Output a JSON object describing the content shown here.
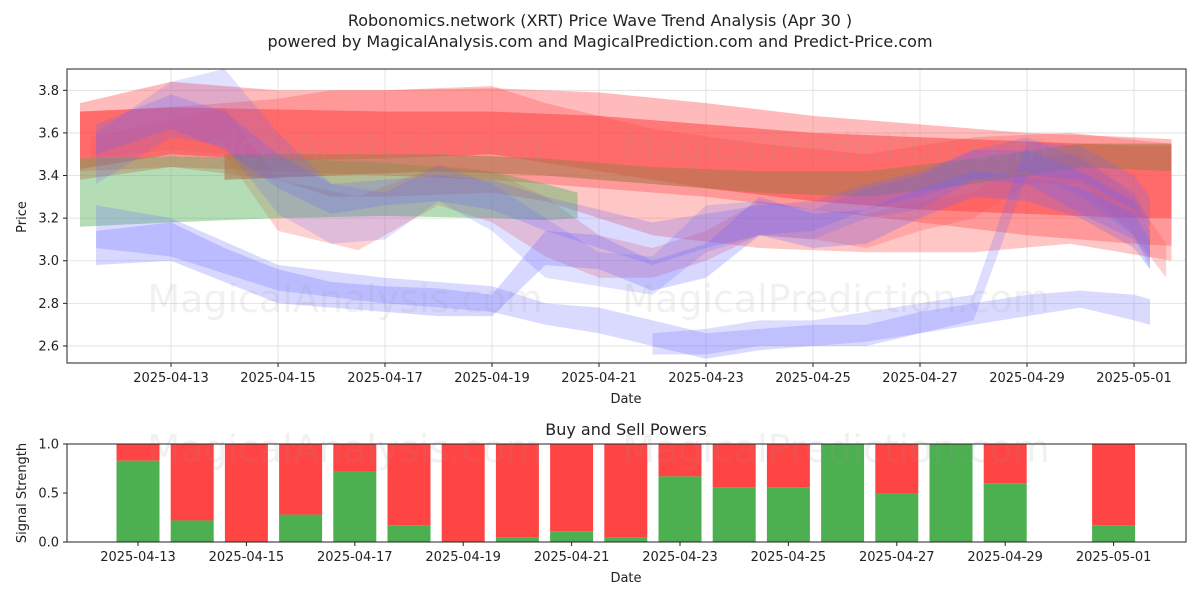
{
  "figure": {
    "title_line1": "Robonomics.network (XRT) Price Wave Trend Analysis (Apr 30 )",
    "title_line2": "powered by MagicalAnalysis.com and MagicalPrediction.com and Predict-Price.com",
    "watermarks": [
      "MagicalAnalysis.com",
      "MagicalPrediction.com"
    ]
  },
  "colors": {
    "red_band": "#ff4d4d",
    "green_band": "#4caf50",
    "blue_band": "#6666ff",
    "buy": "#4caf50",
    "sell": "#ff4444",
    "grid": "#dddddd",
    "axis": "#222222"
  },
  "chart_data": [
    {
      "type": "area",
      "title": "",
      "xlabel": "Date",
      "ylabel": "Price",
      "ylim": [
        2.52,
        3.9
      ],
      "grid": true,
      "x_ticks": [
        "2025-04-13",
        "2025-04-15",
        "2025-04-17",
        "2025-04-19",
        "2025-04-21",
        "2025-04-23",
        "2025-04-25",
        "2025-04-27",
        "2025-04-29",
        "2025-05-01"
      ],
      "y_ticks": [
        2.6,
        2.8,
        3.0,
        3.2,
        3.4,
        3.6,
        3.8
      ],
      "x_start": "2025-04-11",
      "bands": [
        {
          "color": "red",
          "opacity": 0.38,
          "x": [
            0.3,
            2,
            4,
            6,
            8,
            10,
            12,
            14,
            16,
            18,
            20,
            20.7
          ],
          "upper": [
            3.74,
            3.84,
            3.8,
            3.8,
            3.81,
            3.79,
            3.74,
            3.68,
            3.64,
            3.6,
            3.58,
            3.57
          ],
          "lower": [
            3.38,
            3.44,
            3.42,
            3.4,
            3.38,
            3.34,
            3.3,
            3.24,
            3.18,
            3.12,
            3.08,
            3.07
          ]
        },
        {
          "color": "red",
          "opacity": 0.32,
          "x": [
            0.3,
            2,
            4,
            5,
            6,
            8,
            9,
            11,
            13,
            15,
            17,
            18.8,
            20.7
          ],
          "upper": [
            3.7,
            3.72,
            3.76,
            3.8,
            3.8,
            3.82,
            3.74,
            3.62,
            3.55,
            3.5,
            3.58,
            3.6,
            3.55
          ],
          "lower": [
            3.42,
            3.44,
            3.38,
            3.3,
            3.3,
            3.32,
            3.28,
            3.12,
            3.06,
            3.04,
            3.04,
            3.08,
            3.0
          ]
        },
        {
          "color": "red",
          "opacity": 0.25,
          "x": [
            0.5,
            2,
            3,
            4,
            5.5,
            7,
            8,
            9,
            10,
            11,
            12,
            13,
            14,
            15,
            16,
            17,
            18,
            19,
            20,
            20.6
          ],
          "upper": [
            3.58,
            3.66,
            3.72,
            3.38,
            3.3,
            3.45,
            3.42,
            3.3,
            3.12,
            3.06,
            3.14,
            3.28,
            3.24,
            3.22,
            3.28,
            3.32,
            3.48,
            3.5,
            3.3,
            3.08
          ],
          "lower": [
            3.48,
            3.52,
            3.5,
            3.14,
            3.05,
            3.26,
            3.18,
            3.02,
            2.92,
            2.92,
            3.0,
            3.12,
            3.1,
            3.06,
            3.14,
            3.2,
            3.36,
            3.36,
            3.12,
            2.92
          ]
        },
        {
          "color": "red",
          "opacity": 0.6,
          "x": [
            0.3,
            2,
            4,
            6,
            8,
            10,
            12,
            14,
            16,
            18,
            20,
            20.7
          ],
          "upper": [
            3.7,
            3.72,
            3.71,
            3.7,
            3.7,
            3.68,
            3.64,
            3.6,
            3.58,
            3.56,
            3.54,
            3.54
          ],
          "lower": [
            3.43,
            3.5,
            3.47,
            3.48,
            3.5,
            3.42,
            3.34,
            3.28,
            3.24,
            3.22,
            3.2,
            3.2
          ]
        },
        {
          "color": "green",
          "opacity": 0.42,
          "x": [
            0.3,
            2,
            4,
            6,
            8,
            9,
            9.6
          ],
          "upper": [
            3.48,
            3.49,
            3.48,
            3.46,
            3.42,
            3.36,
            3.32
          ],
          "lower": [
            3.16,
            3.18,
            3.2,
            3.21,
            3.2,
            3.19,
            3.2
          ]
        },
        {
          "color": "green",
          "opacity": 0.42,
          "x": [
            3,
            5,
            7,
            9,
            11,
            13,
            15,
            17,
            19,
            20.7
          ],
          "upper": [
            3.5,
            3.5,
            3.5,
            3.48,
            3.44,
            3.42,
            3.42,
            3.48,
            3.55,
            3.55
          ],
          "lower": [
            3.38,
            3.4,
            3.42,
            3.4,
            3.36,
            3.32,
            3.3,
            3.36,
            3.44,
            3.42
          ]
        },
        {
          "color": "red",
          "opacity": 0.35,
          "x": [
            3,
            5,
            7,
            9,
            11,
            13,
            15,
            17,
            19,
            20.7
          ],
          "upper": [
            3.5,
            3.5,
            3.5,
            3.48,
            3.44,
            3.42,
            3.42,
            3.48,
            3.55,
            3.55
          ],
          "lower": [
            3.38,
            3.4,
            3.42,
            3.4,
            3.36,
            3.32,
            3.3,
            3.36,
            3.44,
            3.42
          ]
        },
        {
          "color": "blue",
          "opacity": 0.2,
          "x": [
            0.6,
            2,
            3,
            4,
            5,
            6,
            7,
            8,
            9,
            10,
            11,
            12,
            13,
            14,
            15,
            16,
            17,
            18,
            19,
            20,
            20.3
          ],
          "upper": [
            3.6,
            3.84,
            3.9,
            3.6,
            3.36,
            3.32,
            3.45,
            3.36,
            3.2,
            3.04,
            3.02,
            3.26,
            3.28,
            3.24,
            3.34,
            3.4,
            3.52,
            3.58,
            3.48,
            3.32,
            3.18
          ],
          "lower": [
            3.36,
            3.58,
            3.54,
            3.22,
            3.08,
            3.1,
            3.28,
            3.14,
            2.92,
            2.88,
            2.84,
            3.04,
            3.12,
            3.1,
            3.2,
            3.24,
            3.38,
            3.42,
            3.3,
            3.12,
            2.96
          ]
        },
        {
          "color": "blue",
          "opacity": 0.24,
          "x": [
            0.6,
            2,
            3,
            4,
            5,
            6,
            7,
            8,
            9,
            10,
            11,
            12,
            13,
            14,
            15,
            16,
            17,
            18,
            19,
            20,
            20.3
          ],
          "upper": [
            3.64,
            3.78,
            3.7,
            3.5,
            3.36,
            3.38,
            3.4,
            3.38,
            3.3,
            3.24,
            3.18,
            3.22,
            3.26,
            3.28,
            3.36,
            3.42,
            3.52,
            3.52,
            3.42,
            3.28,
            3.14
          ],
          "lower": [
            3.5,
            3.62,
            3.52,
            3.34,
            3.22,
            3.26,
            3.28,
            3.24,
            3.14,
            3.06,
            2.98,
            3.06,
            3.12,
            3.14,
            3.24,
            3.3,
            3.38,
            3.36,
            3.22,
            3.1,
            3.0
          ]
        },
        {
          "color": "blue",
          "opacity": 0.24,
          "x": [
            0.6,
            2,
            4,
            6,
            8,
            9,
            10,
            11,
            12,
            13,
            14,
            15,
            16,
            17,
            18,
            19,
            20,
            20.3
          ],
          "upper": [
            3.26,
            3.2,
            2.98,
            2.92,
            2.88,
            2.8,
            2.78,
            2.72,
            2.66,
            2.68,
            2.7,
            2.7,
            2.76,
            2.8,
            2.84,
            2.86,
            2.84,
            2.82
          ],
          "lower": [
            3.06,
            3.02,
            2.86,
            2.8,
            2.76,
            2.7,
            2.66,
            2.6,
            2.54,
            2.58,
            2.6,
            2.6,
            2.66,
            2.7,
            2.74,
            2.78,
            2.72,
            2.7
          ]
        },
        {
          "color": "blue",
          "opacity": 0.26,
          "x": [
            0.6,
            2,
            3,
            4,
            5,
            6,
            7,
            8,
            9,
            10,
            11,
            12,
            13,
            14,
            15,
            16,
            17,
            18,
            19,
            20,
            20.3
          ],
          "upper": [
            3.14,
            3.18,
            3.06,
            2.96,
            2.9,
            2.88,
            2.87,
            2.84,
            3.14,
            3.12,
            3.0,
            3.08,
            3.3,
            3.22,
            3.24,
            3.34,
            3.42,
            3.4,
            3.34,
            3.22,
            3.1
          ],
          "lower": [
            2.98,
            3.0,
            2.9,
            2.8,
            2.78,
            2.76,
            2.74,
            2.74,
            2.98,
            2.96,
            2.86,
            2.92,
            3.12,
            3.06,
            3.08,
            3.2,
            3.3,
            3.28,
            3.2,
            3.06,
            2.96
          ]
        },
        {
          "color": "blue",
          "opacity": 0.22,
          "x": [
            11,
            12,
            13,
            14,
            15,
            16,
            17,
            18,
            19,
            20,
            20.3
          ],
          "upper": [
            2.66,
            2.68,
            2.72,
            2.72,
            2.76,
            2.8,
            2.84,
            3.56,
            3.54,
            3.4,
            3.3
          ],
          "lower": [
            2.56,
            2.56,
            2.6,
            2.6,
            2.62,
            2.66,
            2.72,
            3.4,
            3.38,
            3.24,
            3.16
          ]
        }
      ]
    },
    {
      "type": "bar",
      "title": "Buy and Sell Powers",
      "xlabel": "Date",
      "ylabel": "Signal Strength",
      "ylim": [
        0,
        1.0
      ],
      "y_ticks": [
        0.0,
        0.5,
        1.0
      ],
      "x_ticks": [
        "2025-04-13",
        "2025-04-15",
        "2025-04-17",
        "2025-04-19",
        "2025-04-21",
        "2025-04-23",
        "2025-04-25",
        "2025-04-27",
        "2025-04-29",
        "2025-05-01"
      ],
      "x_start": "2025-04-13",
      "categories": [
        "2025-04-13",
        "2025-04-14",
        "2025-04-15",
        "2025-04-16",
        "2025-04-17",
        "2025-04-18",
        "2025-04-19",
        "2025-04-20",
        "2025-04-21",
        "2025-04-22",
        "2025-04-23",
        "2025-04-24",
        "2025-04-25",
        "2025-04-26",
        "2025-04-27",
        "2025-04-28",
        "2025-04-29",
        "2025-04-30",
        "2025-05-01"
      ],
      "series": [
        {
          "name": "Buy",
          "values": [
            0.83,
            0.22,
            0.0,
            0.28,
            0.72,
            0.17,
            0.0,
            0.05,
            0.11,
            0.05,
            0.67,
            0.56,
            0.56,
            1.0,
            0.5,
            1.0,
            0.6,
            0.0,
            0.17
          ]
        },
        {
          "name": "Sell",
          "values": [
            0.17,
            0.78,
            1.0,
            0.72,
            0.28,
            0.83,
            1.0,
            0.95,
            0.89,
            0.95,
            0.33,
            0.44,
            0.44,
            0.0,
            0.5,
            0.0,
            0.4,
            0.0,
            0.83
          ]
        }
      ]
    }
  ]
}
